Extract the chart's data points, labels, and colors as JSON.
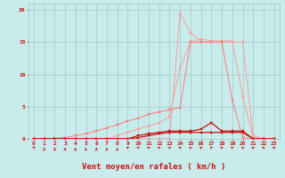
{
  "xlabel": "Vent moyen/en rafales ( km/h )",
  "xlim": [
    -0.5,
    23.5
  ],
  "ylim": [
    0,
    21
  ],
  "yticks": [
    0,
    5,
    10,
    15,
    20
  ],
  "xticks": [
    0,
    1,
    2,
    3,
    4,
    5,
    6,
    7,
    8,
    9,
    10,
    11,
    12,
    13,
    14,
    15,
    16,
    17,
    18,
    19,
    20,
    21,
    22,
    23
  ],
  "bg_color": "#c8ecec",
  "grid_color": "#a0c8c8",
  "x": [
    0,
    1,
    2,
    3,
    4,
    5,
    6,
    7,
    8,
    9,
    10,
    11,
    12,
    13,
    14,
    15,
    16,
    17,
    18,
    19,
    20,
    21,
    22,
    23
  ],
  "line_salmon1_y": [
    0,
    0,
    0,
    0,
    0,
    0,
    0,
    0,
    0,
    0,
    0,
    0,
    0,
    0,
    19.5,
    16.5,
    15.1,
    15.0,
    15.0,
    15.0,
    15.0,
    0.5,
    0,
    0
  ],
  "line_salmon2_y": [
    0,
    0,
    0,
    0,
    0,
    0,
    0,
    0,
    0.5,
    1.0,
    1.5,
    2.0,
    2.5,
    3.5,
    11.0,
    15.0,
    15.5,
    15.2,
    15.2,
    15.2,
    6.5,
    0.2,
    0,
    0
  ],
  "line_salmon3_y": [
    0,
    0,
    0.1,
    0.2,
    0.5,
    0.8,
    1.2,
    1.7,
    2.2,
    2.8,
    3.2,
    3.8,
    4.2,
    4.5,
    4.8,
    15.0,
    15.0,
    15.0,
    15.0,
    6.0,
    0.2,
    0,
    0,
    0
  ],
  "line_dark1_y": [
    0,
    0,
    0,
    0,
    0,
    0,
    0,
    0,
    0,
    0,
    0.5,
    0.8,
    1.0,
    1.2,
    1.2,
    1.2,
    1.5,
    2.5,
    1.2,
    1.2,
    1.2,
    0,
    0,
    0
  ],
  "line_dark2_y": [
    0,
    0,
    0,
    0,
    0,
    0,
    0,
    0,
    0,
    0,
    0.2,
    0.5,
    0.8,
    1.0,
    1.0,
    1.0,
    1.0,
    1.0,
    1.0,
    1.0,
    1.0,
    0,
    0,
    0
  ],
  "arrow_angles_deg": [
    45,
    90,
    90,
    85,
    85,
    85,
    85,
    85,
    85,
    150,
    150,
    155,
    155,
    160,
    160,
    160,
    155,
    150,
    150,
    150,
    160,
    170,
    170,
    175
  ],
  "arrow_color": "#cc1111",
  "line_salmon_color": "#ff9999",
  "line_mid_color": "#ff7777",
  "line_dark_color": "#cc1111"
}
